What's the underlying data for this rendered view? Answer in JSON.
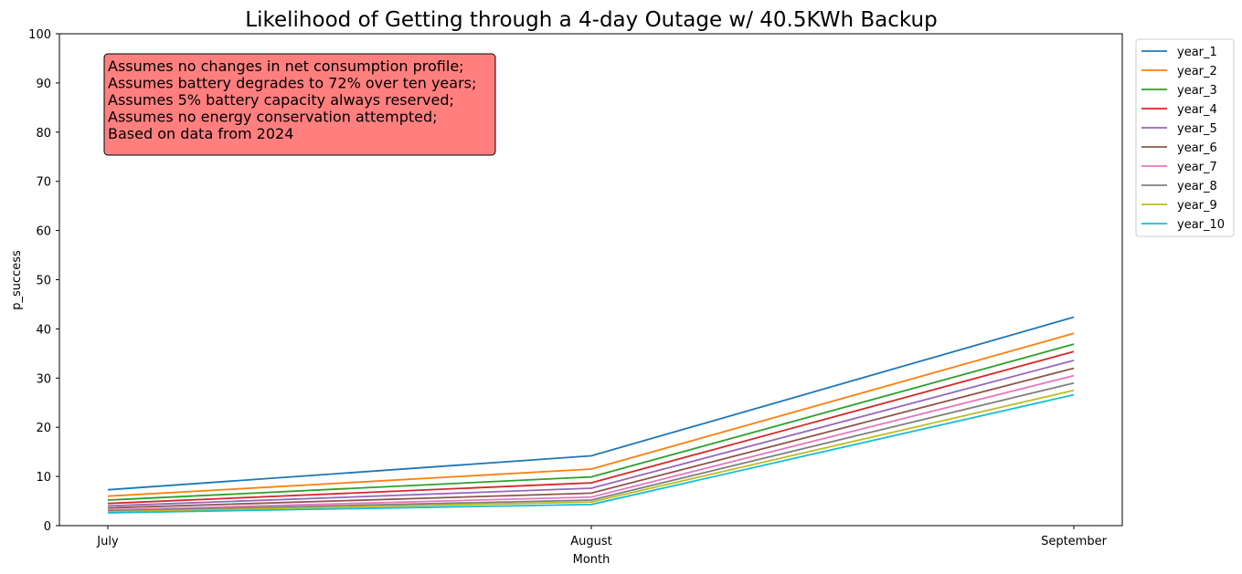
{
  "chart_data": {
    "type": "line",
    "title": "Likelihood of Getting through a 4-day Outage w/ 40.5KWh Backup",
    "xlabel": "Month",
    "ylabel": "p_success",
    "categories": [
      "July",
      "August",
      "September"
    ],
    "ylim": [
      0,
      100
    ],
    "yticks": [
      0,
      10,
      20,
      30,
      40,
      50,
      60,
      70,
      80,
      90,
      100
    ],
    "grid": false,
    "legend_position": "outside upper right",
    "annotation": {
      "lines": [
        "Assumes no changes in net consumption profile;",
        "Assumes battery degrades to 72% over ten years;",
        "Assumes 5% battery capacity always reserved;",
        "Assumes no energy conservation attempted;",
        "Based on data from 2024"
      ],
      "background": "#ff7f7f"
    },
    "series": [
      {
        "name": "year_1",
        "color": "#1f77b4",
        "values": [
          7.3,
          14.2,
          42.4
        ]
      },
      {
        "name": "year_2",
        "color": "#ff7f0e",
        "values": [
          6.0,
          11.5,
          39.1
        ]
      },
      {
        "name": "year_3",
        "color": "#2ca02c",
        "values": [
          5.2,
          9.9,
          36.9
        ]
      },
      {
        "name": "year_4",
        "color": "#d62728",
        "values": [
          4.5,
          8.7,
          35.4
        ]
      },
      {
        "name": "year_5",
        "color": "#9467bd",
        "values": [
          4.0,
          7.6,
          33.6
        ]
      },
      {
        "name": "year_6",
        "color": "#8c564b",
        "values": [
          3.6,
          6.6,
          32.0
        ]
      },
      {
        "name": "year_7",
        "color": "#e377c2",
        "values": [
          3.2,
          5.8,
          30.5
        ]
      },
      {
        "name": "year_8",
        "color": "#7f7f7f",
        "values": [
          3.0,
          5.2,
          29.0
        ]
      },
      {
        "name": "year_9",
        "color": "#bcbd22",
        "values": [
          2.8,
          4.8,
          27.5
        ]
      },
      {
        "name": "year_10",
        "color": "#17becf",
        "values": [
          2.6,
          4.3,
          26.6
        ]
      }
    ]
  }
}
